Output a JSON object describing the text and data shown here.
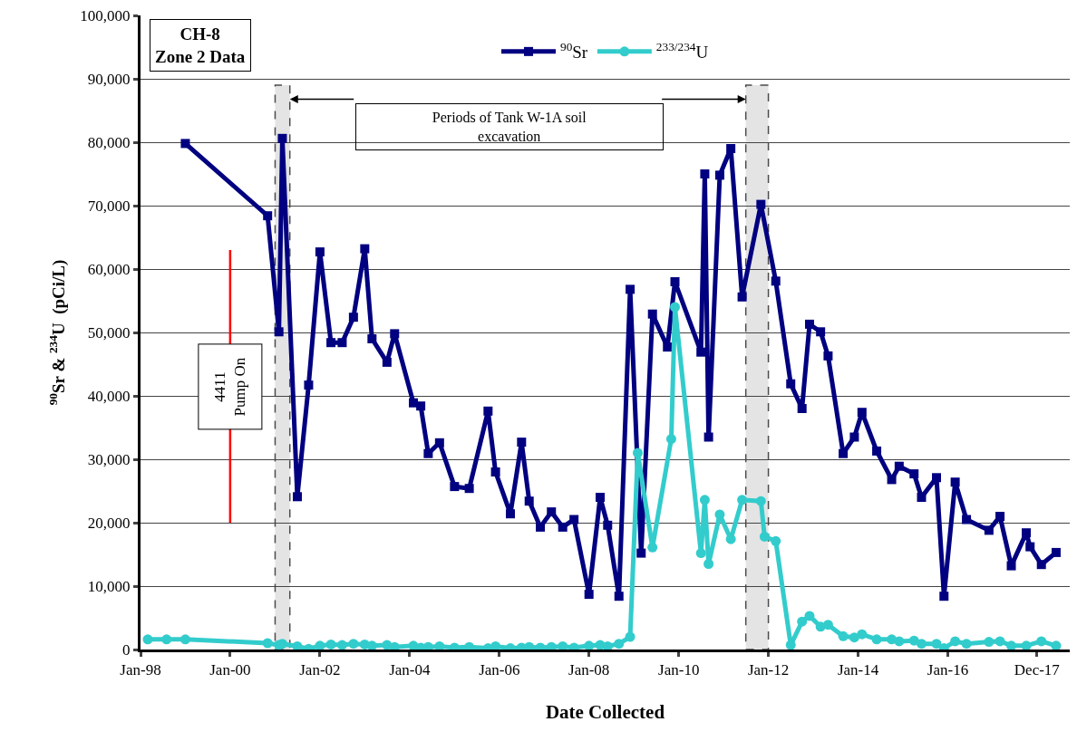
{
  "chart_data": {
    "type": "line",
    "title": "CH-8\nZone 2 Data",
    "xlabel": "Date Collected",
    "ylabel": "$^{90}$Sr & $^{234}$U  (pCi/L)",
    "xlim": [
      "1998-01-01",
      "2018-09-20"
    ],
    "xticks": [
      {
        "value": "1998-01-01",
        "label": "Jan-98"
      },
      {
        "value": "2000-01-01",
        "label": "Jan-00"
      },
      {
        "value": "2002-01-01",
        "label": "Jan-02"
      },
      {
        "value": "2004-01-01",
        "label": "Jan-04"
      },
      {
        "value": "2006-01-01",
        "label": "Jan-06"
      },
      {
        "value": "2008-01-01",
        "label": "Jan-08"
      },
      {
        "value": "2010-01-01",
        "label": "Jan-10"
      },
      {
        "value": "2012-01-01",
        "label": "Jan-12"
      },
      {
        "value": "2014-01-01",
        "label": "Jan-14"
      },
      {
        "value": "2016-01-01",
        "label": "Jan-16"
      },
      {
        "value": "2017-12-27",
        "label": "Dec-17"
      }
    ],
    "ylim": [
      0,
      100000
    ],
    "yticks": [
      0,
      {
        "value": 10000,
        "label": "10,000"
      },
      {
        "value": 20000,
        "label": "20,000"
      },
      {
        "value": 30000,
        "label": "30,000"
      },
      {
        "value": 40000,
        "label": "40,000"
      },
      {
        "value": 50000,
        "label": "50,000"
      },
      {
        "value": 60000,
        "label": "60,000"
      },
      {
        "value": 70000,
        "label": "70,000"
      },
      {
        "value": 80000,
        "label": "80,000"
      },
      {
        "value": 90000,
        "label": "90,000"
      },
      {
        "value": 100000,
        "label": "100,000"
      }
    ],
    "grid": "y",
    "legend": "top",
    "line_style": "solid",
    "series": [
      {
        "name": "$^{90}$Sr",
        "color": "#000080",
        "marker": "square",
        "x": [
          "1999-01",
          "2000-11",
          "2001-02",
          "2001-03",
          "2001-07",
          "2001-10",
          "2002-01",
          "2002-04",
          "2002-07",
          "2002-10",
          "2003-01",
          "2003-03",
          "2003-07",
          "2003-09",
          "2004-02",
          "2004-04",
          "2004-06",
          "2004-09",
          "2005-01",
          "2005-05",
          "2005-10",
          "2005-12",
          "2006-04",
          "2006-07",
          "2006-09",
          "2006-12",
          "2007-03",
          "2007-06",
          "2007-09",
          "2008-01",
          "2008-04",
          "2008-06",
          "2008-09",
          "2008-12",
          "2009-03",
          "2009-06",
          "2009-10",
          "2009-12",
          "2010-07",
          "2010-08",
          "2010-09",
          "2010-12",
          "2011-03",
          "2011-06",
          "2011-11",
          "2012-03",
          "2012-07",
          "2012-10",
          "2012-12",
          "2013-03",
          "2013-05",
          "2013-09",
          "2013-12",
          "2014-02",
          "2014-06",
          "2014-10",
          "2014-12",
          "2015-04",
          "2015-06",
          "2015-10",
          "2015-12",
          "2016-03",
          "2016-06",
          "2016-12",
          "2017-03",
          "2017-06",
          "2017-10",
          "2017-11",
          "2018-02",
          "2018-06"
        ],
        "values": [
          79800,
          68400,
          50100,
          80600,
          24100,
          41700,
          62700,
          48400,
          48400,
          52400,
          63200,
          49000,
          45300,
          49800,
          38900,
          38400,
          30900,
          32600,
          25700,
          25400,
          37600,
          28000,
          21400,
          32700,
          23400,
          19300,
          21700,
          19300,
          20500,
          8700,
          24000,
          19600,
          8400,
          56800,
          15200,
          52900,
          47700,
          58000,
          46900,
          75000,
          33500,
          74800,
          79000,
          55600,
          70200,
          58100,
          41900,
          38000,
          51300,
          50100,
          46300,
          30900,
          33500,
          37400,
          31300,
          26800,
          28900,
          27700,
          24000,
          27100,
          8400,
          26400,
          20500,
          18800,
          21000,
          13200,
          18400,
          16200,
          13400,
          15300
        ]
      },
      {
        "name": "$^{233/234}$U",
        "color": "#33cccc",
        "marker": "circle",
        "x": [
          "1998-03",
          "1998-08",
          "1999-01",
          "2000-11",
          "2001-02",
          "2001-03",
          "2001-07",
          "2001-10",
          "2002-01",
          "2002-04",
          "2002-07",
          "2002-10",
          "2003-01",
          "2003-03",
          "2003-07",
          "2003-09",
          "2004-02",
          "2004-04",
          "2004-06",
          "2004-09",
          "2005-01",
          "2005-05",
          "2005-10",
          "2005-12",
          "2006-04",
          "2006-07",
          "2006-09",
          "2006-12",
          "2007-03",
          "2007-06",
          "2007-09",
          "2008-01",
          "2008-04",
          "2008-06",
          "2008-09",
          "2008-12",
          "2009-02",
          "2009-06",
          "2009-11",
          "2009-12",
          "2010-07",
          "2010-08",
          "2010-09",
          "2010-12",
          "2011-03",
          "2011-06",
          "2011-11",
          "2011-12",
          "2012-03",
          "2012-07",
          "2012-10",
          "2012-12",
          "2013-03",
          "2013-05",
          "2013-09",
          "2013-12",
          "2014-02",
          "2014-06",
          "2014-10",
          "2014-12",
          "2015-04",
          "2015-06",
          "2015-10",
          "2015-12",
          "2016-03",
          "2016-06",
          "2016-12",
          "2017-03",
          "2017-06",
          "2017-10",
          "2018-02",
          "2018-06"
        ],
        "values": [
          1600,
          1600,
          1600,
          1000,
          700,
          900,
          500,
          100,
          600,
          800,
          700,
          900,
          800,
          600,
          700,
          400,
          600,
          300,
          400,
          500,
          300,
          400,
          200,
          500,
          200,
          300,
          400,
          300,
          400,
          500,
          300,
          600,
          700,
          500,
          900,
          2000,
          31000,
          16100,
          33200,
          54000,
          15200,
          23600,
          13500,
          21300,
          17400,
          23600,
          23400,
          17800,
          17100,
          700,
          4400,
          5300,
          3600,
          3900,
          2100,
          1900,
          2400,
          1600,
          1600,
          1300,
          1400,
          900,
          900,
          200,
          1300,
          900,
          1200,
          1300,
          600,
          600,
          1300,
          600
        ]
      }
    ],
    "bands": [
      {
        "axis": "x",
        "from": "2001-01",
        "to": "2001-05",
        "color": "#d9d9d9"
      },
      {
        "axis": "x",
        "from": "2011-07",
        "to": "2012-01",
        "color": "#d9d9d9"
      }
    ],
    "ref_lines": [
      {
        "axis": "x",
        "value": "2000-01",
        "label": "4411\nPump On",
        "color": "#ff0000"
      }
    ],
    "annotations": [
      "Periods of Tank W-1A soil excavation"
    ]
  }
}
